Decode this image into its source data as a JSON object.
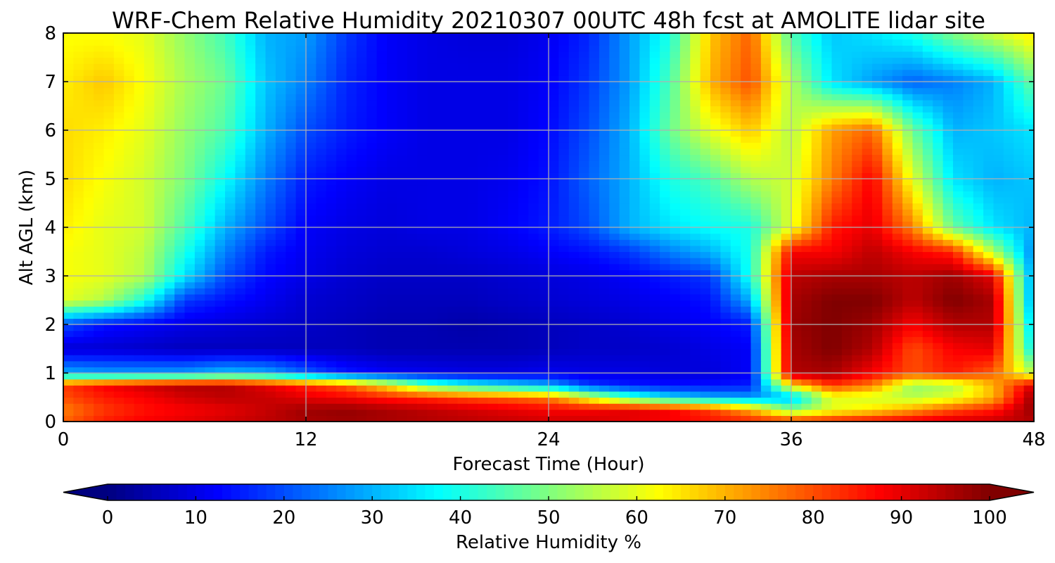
{
  "chart_data": {
    "type": "heatmap",
    "title": "WRF-Chem Relative Humidity 20210307 00UTC 48h fcst at AMOLITE lidar site",
    "xlabel": "Forecast Time (Hour)",
    "ylabel": "Alt AGL (km)",
    "xlim": [
      0,
      48
    ],
    "ylim": [
      0,
      8
    ],
    "xticks": [
      0,
      12,
      24,
      36,
      48
    ],
    "yticks": [
      0,
      1,
      2,
      3,
      4,
      5,
      6,
      7,
      8
    ],
    "grid": true,
    "colorscale": "jet",
    "colorbar": {
      "label": "Relative Humidity %",
      "ticks": [
        0,
        10,
        20,
        30,
        40,
        50,
        60,
        70,
        80,
        90,
        100
      ],
      "range": [
        0,
        100
      ],
      "extend": "both",
      "orientation": "horizontal"
    },
    "x": [
      0,
      2,
      4,
      6,
      8,
      10,
      12,
      14,
      16,
      18,
      20,
      22,
      24,
      26,
      28,
      30,
      32,
      34,
      36,
      38,
      40,
      42,
      44,
      46,
      48
    ],
    "y": [
      0,
      0.25,
      0.5,
      0.75,
      1,
      1.5,
      2,
      2.5,
      3,
      3.5,
      4,
      5,
      6,
      7,
      8
    ],
    "z": [
      [
        78,
        85,
        88,
        90,
        92,
        94,
        96,
        97,
        96,
        95,
        94,
        93,
        92,
        92,
        90,
        88,
        86,
        85,
        84,
        86,
        88,
        90,
        92,
        93,
        95
      ],
      [
        75,
        82,
        86,
        88,
        90,
        93,
        97,
        98,
        96,
        94,
        92,
        90,
        88,
        88,
        90,
        88,
        82,
        70,
        50,
        60,
        65,
        72,
        80,
        85,
        98
      ],
      [
        80,
        85,
        88,
        92,
        94,
        93,
        90,
        88,
        85,
        83,
        80,
        78,
        75,
        60,
        45,
        35,
        30,
        28,
        30,
        60,
        58,
        55,
        60,
        70,
        98
      ],
      [
        82,
        88,
        92,
        95,
        95,
        90,
        84,
        78,
        65,
        48,
        40,
        35,
        30,
        18,
        15,
        14,
        14,
        15,
        65,
        82,
        75,
        52,
        55,
        70,
        92
      ],
      [
        30,
        28,
        28,
        28,
        32,
        30,
        22,
        15,
        12,
        11,
        10,
        10,
        11,
        10,
        10,
        9,
        9,
        12,
        95,
        96,
        88,
        80,
        85,
        78,
        55
      ],
      [
        8,
        8,
        7,
        6,
        6,
        6,
        6,
        6,
        5,
        5,
        5,
        5,
        6,
        7,
        7,
        8,
        10,
        12,
        96,
        100,
        95,
        80,
        88,
        90,
        35
      ],
      [
        20,
        14,
        12,
        10,
        9,
        8,
        7,
        6,
        5,
        5,
        4,
        5,
        6,
        7,
        8,
        10,
        12,
        15,
        97,
        100,
        97,
        88,
        95,
        95,
        30
      ],
      [
        60,
        55,
        40,
        18,
        14,
        11,
        8,
        7,
        6,
        6,
        6,
        7,
        8,
        9,
        10,
        12,
        14,
        30,
        96,
        100,
        100,
        94,
        100,
        96,
        25
      ],
      [
        62,
        60,
        55,
        35,
        20,
        13,
        10,
        8,
        7,
        7,
        7,
        8,
        9,
        10,
        12,
        15,
        18,
        40,
        94,
        96,
        96,
        94,
        97,
        90,
        25
      ],
      [
        62,
        60,
        56,
        40,
        25,
        15,
        11,
        9,
        8,
        8,
        9,
        10,
        12,
        14,
        18,
        25,
        30,
        40,
        88,
        88,
        94,
        88,
        84,
        55,
        25
      ],
      [
        64,
        60,
        58,
        45,
        30,
        20,
        12,
        10,
        9,
        10,
        10,
        12,
        15,
        20,
        30,
        35,
        38,
        40,
        60,
        85,
        90,
        75,
        48,
        35,
        30
      ],
      [
        66,
        62,
        58,
        50,
        38,
        25,
        15,
        12,
        10,
        10,
        10,
        11,
        14,
        22,
        30,
        40,
        45,
        55,
        58,
        75,
        88,
        60,
        35,
        30,
        32
      ],
      [
        66,
        64,
        60,
        52,
        45,
        30,
        20,
        15,
        12,
        10,
        10,
        10,
        13,
        20,
        30,
        48,
        60,
        68,
        55,
        72,
        78,
        48,
        30,
        32,
        35
      ],
      [
        64,
        68,
        62,
        54,
        48,
        32,
        25,
        16,
        12,
        10,
        10,
        10,
        12,
        18,
        28,
        45,
        70,
        80,
        55,
        35,
        28,
        22,
        25,
        30,
        48
      ],
      [
        62,
        62,
        60,
        52,
        44,
        30,
        28,
        18,
        12,
        10,
        9,
        9,
        11,
        16,
        28,
        40,
        68,
        78,
        45,
        32,
        35,
        40,
        50,
        58,
        65
      ]
    ]
  }
}
